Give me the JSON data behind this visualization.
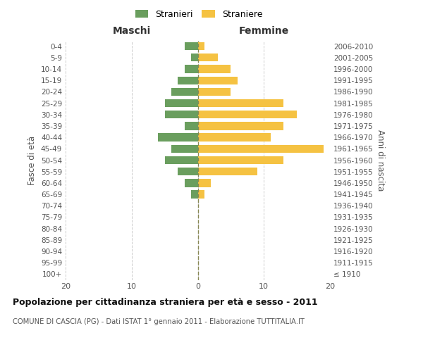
{
  "age_groups": [
    "100+",
    "95-99",
    "90-94",
    "85-89",
    "80-84",
    "75-79",
    "70-74",
    "65-69",
    "60-64",
    "55-59",
    "50-54",
    "45-49",
    "40-44",
    "35-39",
    "30-34",
    "25-29",
    "20-24",
    "15-19",
    "10-14",
    "5-9",
    "0-4"
  ],
  "birth_years": [
    "≤ 1910",
    "1911-1915",
    "1916-1920",
    "1921-1925",
    "1926-1930",
    "1931-1935",
    "1936-1940",
    "1941-1945",
    "1946-1950",
    "1951-1955",
    "1956-1960",
    "1961-1965",
    "1966-1970",
    "1971-1975",
    "1976-1980",
    "1981-1985",
    "1986-1990",
    "1991-1995",
    "1996-2000",
    "2001-2005",
    "2006-2010"
  ],
  "maschi": [
    0,
    0,
    0,
    0,
    0,
    0,
    0,
    1,
    2,
    3,
    5,
    4,
    6,
    2,
    5,
    5,
    4,
    3,
    2,
    1,
    2
  ],
  "femmine": [
    0,
    0,
    0,
    0,
    0,
    0,
    0,
    1,
    2,
    9,
    13,
    19,
    11,
    13,
    15,
    13,
    5,
    6,
    5,
    3,
    1
  ],
  "color_maschi": "#6a9e5e",
  "color_femmine": "#f5c242",
  "title": "Popolazione per cittadinanza straniera per età e sesso - 2011",
  "subtitle": "COMUNE DI CASCIA (PG) - Dati ISTAT 1° gennaio 2011 - Elaborazione TUTTITALIA.IT",
  "ylabel_left": "Fasce di età",
  "ylabel_right": "Anni di nascita",
  "xlabel_left": "Maschi",
  "xlabel_right": "Femmine",
  "legend_maschi": "Stranieri",
  "legend_femmine": "Straniere",
  "xlim": 20,
  "background_color": "#ffffff",
  "grid_color": "#cccccc"
}
